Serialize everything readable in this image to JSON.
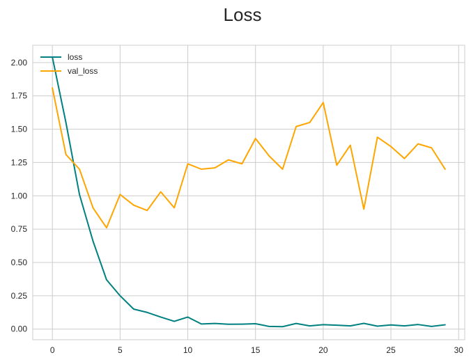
{
  "chart_data": {
    "type": "line",
    "title": "Loss",
    "xlabel": "",
    "ylabel": "",
    "xlim": [
      -1.45,
      30.45
    ],
    "ylim": [
      -0.08,
      2.13
    ],
    "xticks": [
      0,
      5,
      10,
      15,
      20,
      25,
      30
    ],
    "yticks": [
      0.0,
      0.25,
      0.5,
      0.75,
      1.0,
      1.25,
      1.5,
      1.75,
      2.0
    ],
    "ytick_labels": [
      "0.00",
      "0.25",
      "0.50",
      "0.75",
      "1.00",
      "1.25",
      "1.50",
      "1.75",
      "2.00"
    ],
    "grid": true,
    "legend_position": "top-left",
    "x": [
      0,
      1,
      2,
      3,
      4,
      5,
      6,
      7,
      8,
      9,
      10,
      11,
      12,
      13,
      14,
      15,
      16,
      17,
      18,
      19,
      20,
      21,
      22,
      23,
      24,
      25,
      26,
      27,
      28,
      29
    ],
    "series": [
      {
        "name": "loss",
        "color": "#008080",
        "values": [
          2.04,
          1.55,
          1.01,
          0.66,
          0.37,
          0.25,
          0.15,
          0.125,
          0.09,
          0.058,
          0.09,
          0.038,
          0.042,
          0.036,
          0.037,
          0.04,
          0.02,
          0.018,
          0.042,
          0.024,
          0.033,
          0.029,
          0.024,
          0.043,
          0.022,
          0.031,
          0.024,
          0.034,
          0.02,
          0.032
        ]
      },
      {
        "name": "val_loss",
        "color": "#ffa500",
        "values": [
          1.81,
          1.31,
          1.2,
          0.91,
          0.76,
          1.01,
          0.93,
          0.89,
          1.03,
          0.91,
          1.24,
          1.2,
          1.21,
          1.27,
          1.24,
          1.43,
          1.3,
          1.2,
          1.52,
          1.55,
          1.7,
          1.23,
          1.38,
          0.9,
          1.44,
          1.37,
          1.28,
          1.39,
          1.36,
          1.2
        ]
      }
    ]
  }
}
